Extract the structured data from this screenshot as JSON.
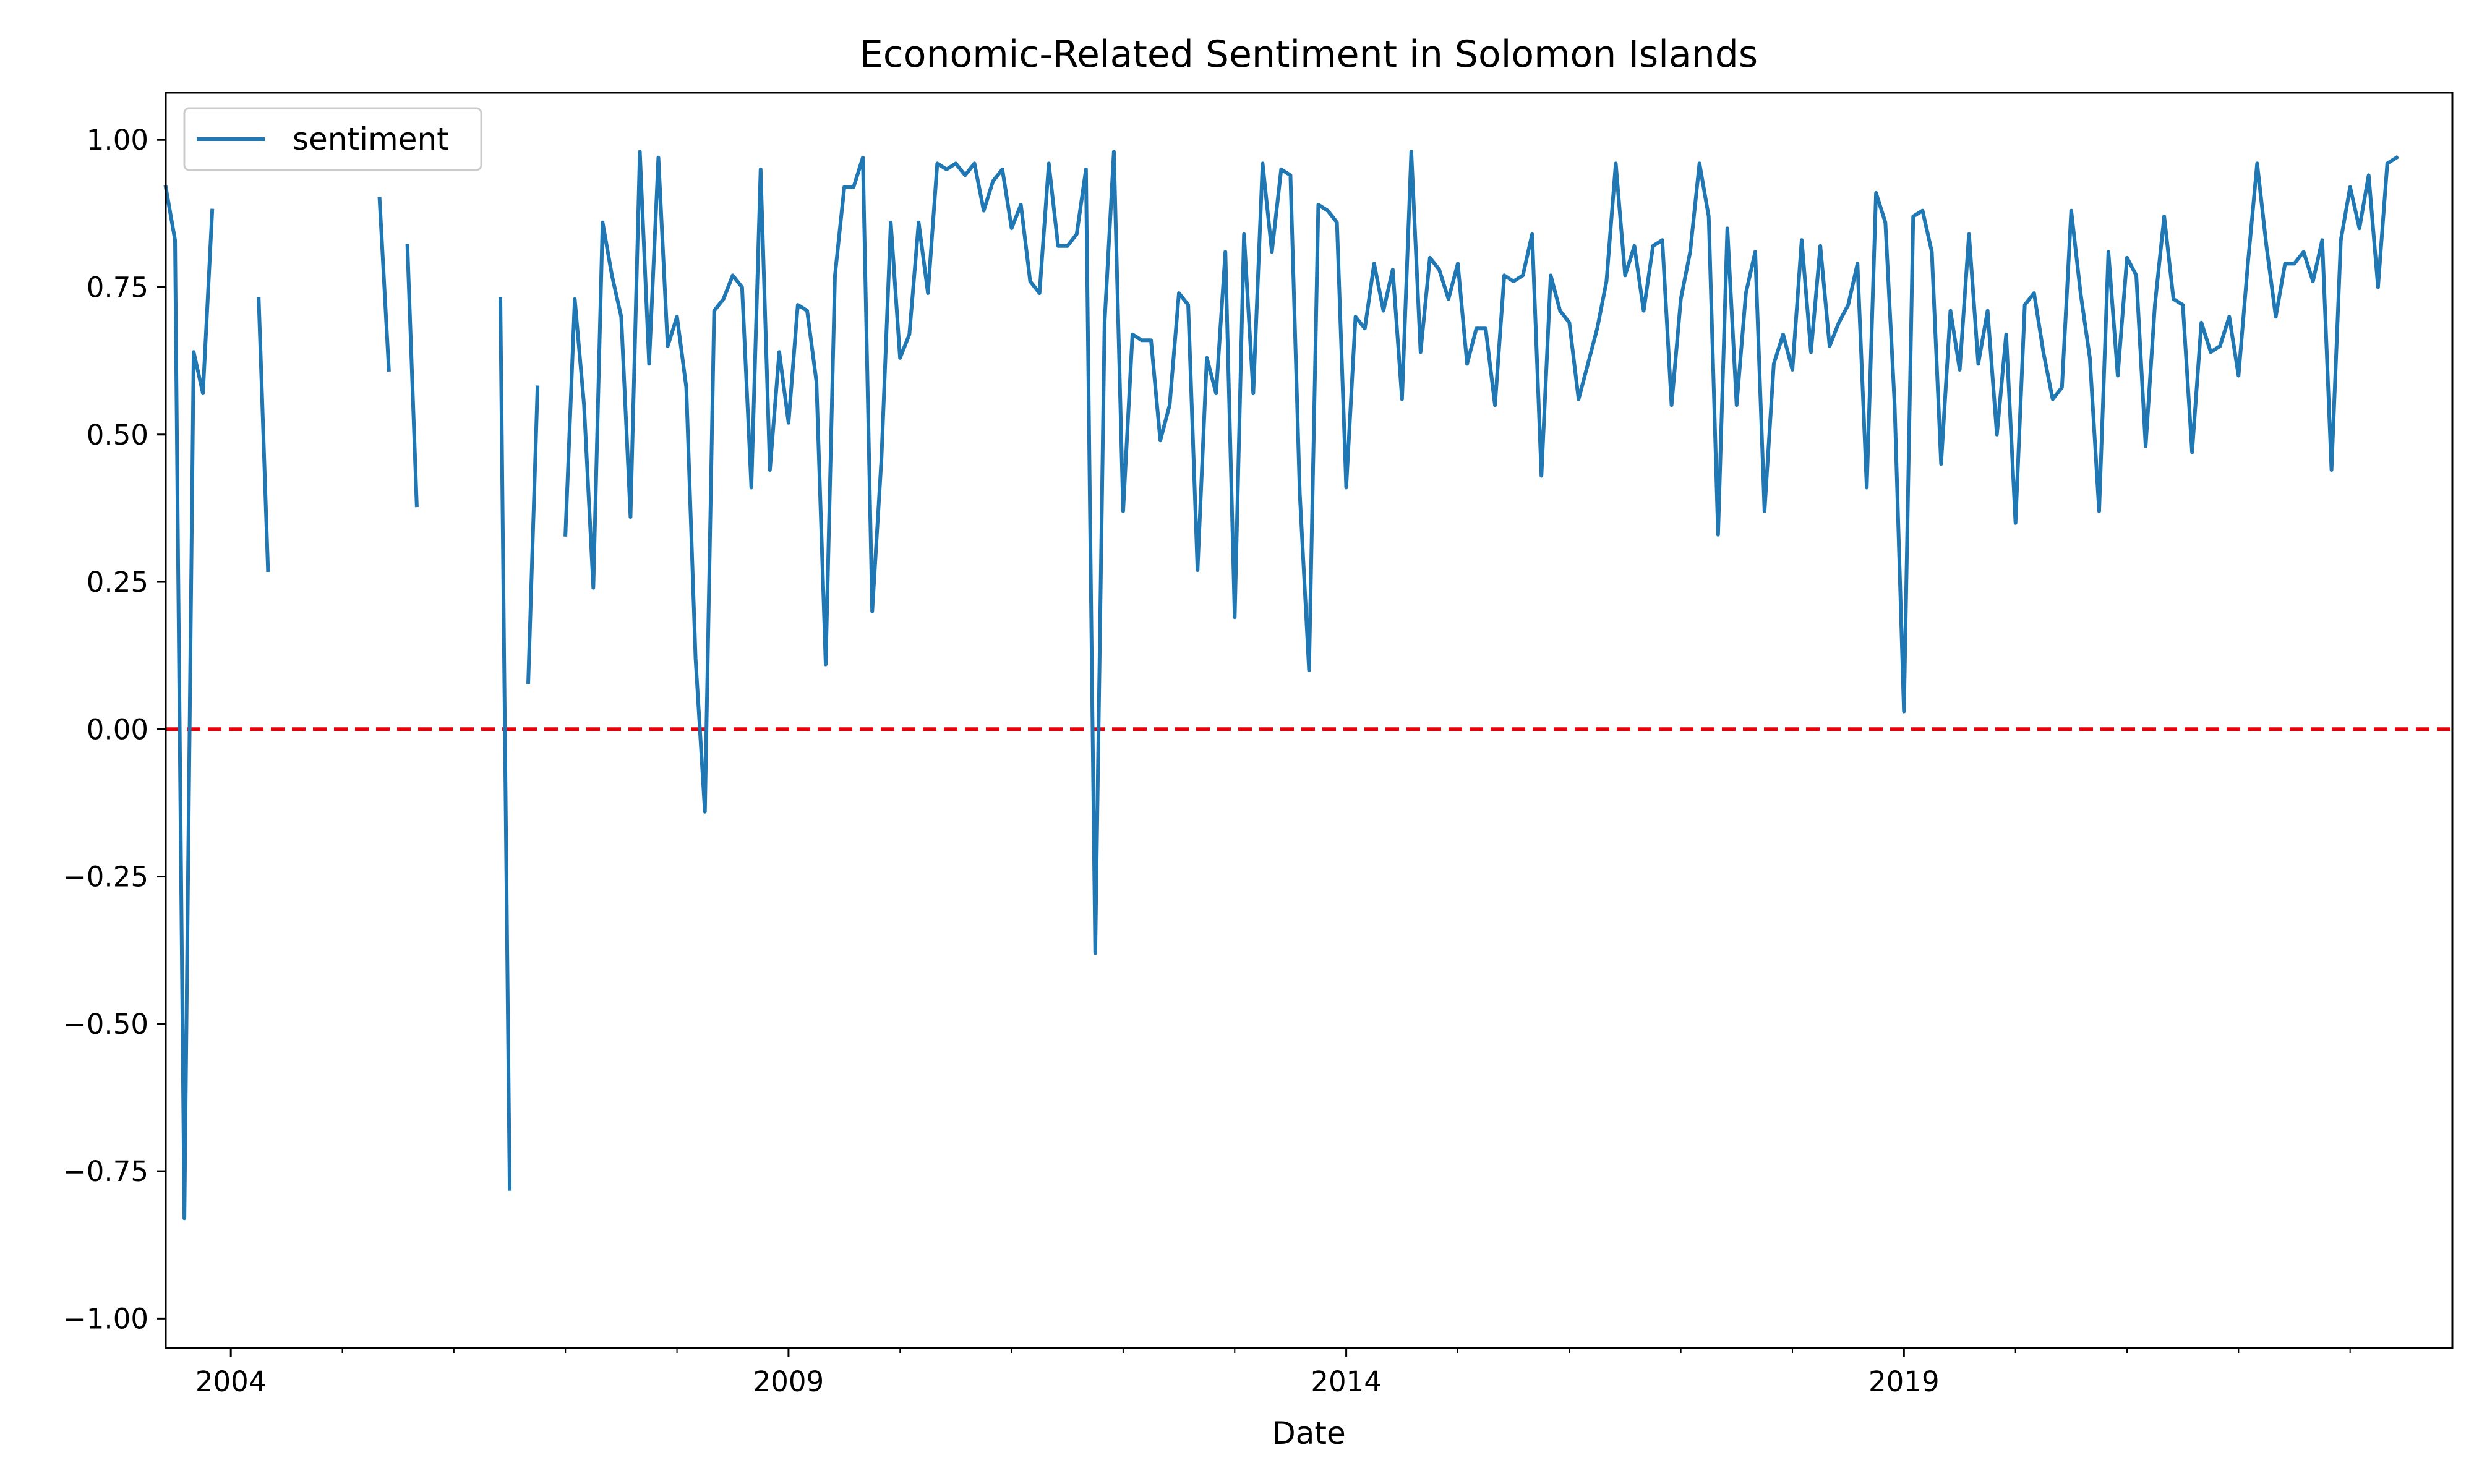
{
  "chart_data": {
    "type": "line",
    "title": "Economic-Related Sentiment in Solomon Islands",
    "xlabel": "Date",
    "ylabel": "",
    "x_axis": "date",
    "xlim": [
      "2003-06",
      "2023-12"
    ],
    "ylim": [
      -1.05,
      1.08
    ],
    "x_ticks": [
      "2004",
      "2009",
      "2014",
      "2019"
    ],
    "y_ticks": [
      "1.00",
      "0.75",
      "0.50",
      "0.25",
      "0.00",
      "−0.25",
      "−0.50",
      "−0.75",
      "−1.00"
    ],
    "y_tick_values": [
      1.0,
      0.75,
      0.5,
      0.25,
      0.0,
      -0.25,
      -0.5,
      -0.75,
      -1.0
    ],
    "grid": false,
    "legend": {
      "position": "top-left",
      "label": "sentiment"
    },
    "reference_line": {
      "y": 0.0,
      "color": "#e8000b",
      "style": "dashed"
    },
    "series_color": "#1f77b4",
    "series": [
      {
        "name": "sentiment",
        "points": [
          [
            "2003-06",
            0.92
          ],
          [
            "2003-07",
            0.83
          ],
          [
            "2003-08",
            -0.83
          ],
          [
            "2003-09",
            0.64
          ],
          [
            "2003-10",
            0.57
          ],
          [
            "2003-11",
            0.88
          ],
          [
            "2004-04",
            0.73
          ],
          [
            "2004-05",
            0.27
          ],
          [
            "2005-05",
            0.9
          ],
          [
            "2005-06",
            0.61
          ],
          [
            "2005-08",
            0.82
          ],
          [
            "2005-09",
            0.38
          ],
          [
            "2006-06",
            0.73
          ],
          [
            "2006-07",
            -0.78
          ],
          [
            "2006-09",
            0.08
          ],
          [
            "2006-10",
            0.58
          ],
          [
            "2007-01",
            0.33
          ],
          [
            "2007-02",
            0.73
          ],
          [
            "2007-03",
            0.55
          ],
          [
            "2007-04",
            0.24
          ],
          [
            "2007-05",
            0.86
          ],
          [
            "2007-06",
            0.77
          ],
          [
            "2007-07",
            0.7
          ],
          [
            "2007-08",
            0.36
          ],
          [
            "2007-09",
            0.98
          ],
          [
            "2007-10",
            0.62
          ],
          [
            "2007-11",
            0.97
          ],
          [
            "2007-12",
            0.65
          ],
          [
            "2008-01",
            0.7
          ],
          [
            "2008-02",
            0.58
          ],
          [
            "2008-03",
            0.12
          ],
          [
            "2008-04",
            -0.14
          ],
          [
            "2008-05",
            0.71
          ],
          [
            "2008-06",
            0.73
          ],
          [
            "2008-07",
            0.77
          ],
          [
            "2008-08",
            0.75
          ],
          [
            "2008-09",
            0.41
          ],
          [
            "2008-10",
            0.95
          ],
          [
            "2008-11",
            0.44
          ],
          [
            "2008-12",
            0.64
          ],
          [
            "2009-01",
            0.52
          ],
          [
            "2009-02",
            0.72
          ],
          [
            "2009-03",
            0.71
          ],
          [
            "2009-04",
            0.59
          ],
          [
            "2009-05",
            0.11
          ],
          [
            "2009-06",
            0.77
          ],
          [
            "2009-07",
            0.92
          ],
          [
            "2009-08",
            0.92
          ],
          [
            "2009-09",
            0.97
          ],
          [
            "2009-10",
            0.2
          ],
          [
            "2009-11",
            0.46
          ],
          [
            "2009-12",
            0.86
          ],
          [
            "2010-01",
            0.63
          ],
          [
            "2010-02",
            0.67
          ],
          [
            "2010-03",
            0.86
          ],
          [
            "2010-04",
            0.74
          ],
          [
            "2010-05",
            0.96
          ],
          [
            "2010-06",
            0.95
          ],
          [
            "2010-07",
            0.96
          ],
          [
            "2010-08",
            0.94
          ],
          [
            "2010-09",
            0.96
          ],
          [
            "2010-10",
            0.88
          ],
          [
            "2010-11",
            0.93
          ],
          [
            "2010-12",
            0.95
          ],
          [
            "2011-01",
            0.85
          ],
          [
            "2011-02",
            0.89
          ],
          [
            "2011-03",
            0.76
          ],
          [
            "2011-04",
            0.74
          ],
          [
            "2011-05",
            0.96
          ],
          [
            "2011-06",
            0.82
          ],
          [
            "2011-07",
            0.82
          ],
          [
            "2011-08",
            0.84
          ],
          [
            "2011-09",
            0.95
          ],
          [
            "2011-10",
            -0.38
          ],
          [
            "2011-11",
            0.69
          ],
          [
            "2011-12",
            0.98
          ],
          [
            "2012-01",
            0.37
          ],
          [
            "2012-02",
            0.67
          ],
          [
            "2012-03",
            0.66
          ],
          [
            "2012-04",
            0.66
          ],
          [
            "2012-05",
            0.49
          ],
          [
            "2012-06",
            0.55
          ],
          [
            "2012-07",
            0.74
          ],
          [
            "2012-08",
            0.72
          ],
          [
            "2012-09",
            0.27
          ],
          [
            "2012-10",
            0.63
          ],
          [
            "2012-11",
            0.57
          ],
          [
            "2012-12",
            0.81
          ],
          [
            "2013-01",
            0.19
          ],
          [
            "2013-02",
            0.84
          ],
          [
            "2013-03",
            0.57
          ],
          [
            "2013-04",
            0.96
          ],
          [
            "2013-05",
            0.81
          ],
          [
            "2013-06",
            0.95
          ],
          [
            "2013-07",
            0.94
          ],
          [
            "2013-08",
            0.4
          ],
          [
            "2013-09",
            0.1
          ],
          [
            "2013-10",
            0.89
          ],
          [
            "2013-11",
            0.88
          ],
          [
            "2013-12",
            0.86
          ],
          [
            "2014-01",
            0.41
          ],
          [
            "2014-02",
            0.7
          ],
          [
            "2014-03",
            0.68
          ],
          [
            "2014-04",
            0.79
          ],
          [
            "2014-05",
            0.71
          ],
          [
            "2014-06",
            0.78
          ],
          [
            "2014-07",
            0.56
          ],
          [
            "2014-08",
            0.98
          ],
          [
            "2014-09",
            0.64
          ],
          [
            "2014-10",
            0.8
          ],
          [
            "2014-11",
            0.78
          ],
          [
            "2014-12",
            0.73
          ],
          [
            "2015-01",
            0.79
          ],
          [
            "2015-02",
            0.62
          ],
          [
            "2015-03",
            0.68
          ],
          [
            "2015-04",
            0.68
          ],
          [
            "2015-05",
            0.55
          ],
          [
            "2015-06",
            0.77
          ],
          [
            "2015-07",
            0.76
          ],
          [
            "2015-08",
            0.77
          ],
          [
            "2015-09",
            0.84
          ],
          [
            "2015-10",
            0.43
          ],
          [
            "2015-11",
            0.77
          ],
          [
            "2015-12",
            0.71
          ],
          [
            "2016-01",
            0.69
          ],
          [
            "2016-02",
            0.56
          ],
          [
            "2016-03",
            0.62
          ],
          [
            "2016-04",
            0.68
          ],
          [
            "2016-05",
            0.76
          ],
          [
            "2016-06",
            0.96
          ],
          [
            "2016-07",
            0.77
          ],
          [
            "2016-08",
            0.82
          ],
          [
            "2016-09",
            0.71
          ],
          [
            "2016-10",
            0.82
          ],
          [
            "2016-11",
            0.83
          ],
          [
            "2016-12",
            0.55
          ],
          [
            "2017-01",
            0.73
          ],
          [
            "2017-02",
            0.81
          ],
          [
            "2017-03",
            0.96
          ],
          [
            "2017-04",
            0.87
          ],
          [
            "2017-05",
            0.33
          ],
          [
            "2017-06",
            0.85
          ],
          [
            "2017-07",
            0.55
          ],
          [
            "2017-08",
            0.74
          ],
          [
            "2017-09",
            0.81
          ],
          [
            "2017-10",
            0.37
          ],
          [
            "2017-11",
            0.62
          ],
          [
            "2017-12",
            0.67
          ],
          [
            "2018-01",
            0.61
          ],
          [
            "2018-02",
            0.83
          ],
          [
            "2018-03",
            0.64
          ],
          [
            "2018-04",
            0.82
          ],
          [
            "2018-05",
            0.65
          ],
          [
            "2018-06",
            0.69
          ],
          [
            "2018-07",
            0.72
          ],
          [
            "2018-08",
            0.79
          ],
          [
            "2018-09",
            0.41
          ],
          [
            "2018-10",
            0.91
          ],
          [
            "2018-11",
            0.86
          ],
          [
            "2018-12",
            0.55
          ],
          [
            "2019-01",
            0.03
          ],
          [
            "2019-02",
            0.87
          ],
          [
            "2019-03",
            0.88
          ],
          [
            "2019-04",
            0.81
          ],
          [
            "2019-05",
            0.45
          ],
          [
            "2019-06",
            0.71
          ],
          [
            "2019-07",
            0.61
          ],
          [
            "2019-08",
            0.84
          ],
          [
            "2019-09",
            0.62
          ],
          [
            "2019-10",
            0.71
          ],
          [
            "2019-11",
            0.5
          ],
          [
            "2019-12",
            0.67
          ],
          [
            "2020-01",
            0.35
          ],
          [
            "2020-02",
            0.72
          ],
          [
            "2020-03",
            0.74
          ],
          [
            "2020-04",
            0.64
          ],
          [
            "2020-05",
            0.56
          ],
          [
            "2020-06",
            0.58
          ],
          [
            "2020-07",
            0.88
          ],
          [
            "2020-08",
            0.74
          ],
          [
            "2020-09",
            0.63
          ],
          [
            "2020-10",
            0.37
          ],
          [
            "2020-11",
            0.81
          ],
          [
            "2020-12",
            0.6
          ],
          [
            "2021-01",
            0.8
          ],
          [
            "2021-02",
            0.77
          ],
          [
            "2021-03",
            0.48
          ],
          [
            "2021-04",
            0.72
          ],
          [
            "2021-05",
            0.87
          ],
          [
            "2021-06",
            0.73
          ],
          [
            "2021-07",
            0.72
          ],
          [
            "2021-08",
            0.47
          ],
          [
            "2021-09",
            0.69
          ],
          [
            "2021-10",
            0.64
          ],
          [
            "2021-11",
            0.65
          ],
          [
            "2021-12",
            0.7
          ],
          [
            "2022-01",
            0.6
          ],
          [
            "2022-02",
            0.79
          ],
          [
            "2022-03",
            0.96
          ],
          [
            "2022-04",
            0.82
          ],
          [
            "2022-05",
            0.7
          ],
          [
            "2022-06",
            0.79
          ],
          [
            "2022-07",
            0.79
          ],
          [
            "2022-08",
            0.81
          ],
          [
            "2022-09",
            0.76
          ],
          [
            "2022-10",
            0.83
          ],
          [
            "2022-11",
            0.44
          ],
          [
            "2022-12",
            0.83
          ],
          [
            "2023-01",
            0.92
          ],
          [
            "2023-02",
            0.85
          ],
          [
            "2023-03",
            0.94
          ],
          [
            "2023-04",
            0.75
          ],
          [
            "2023-05",
            0.96
          ],
          [
            "2023-06",
            0.97
          ]
        ]
      }
    ]
  }
}
